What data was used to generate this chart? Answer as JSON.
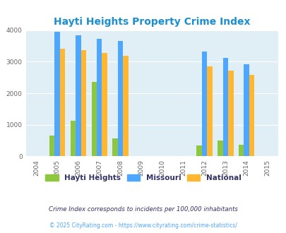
{
  "title": "Hayti Heights Property Crime Index",
  "years": [
    2004,
    2005,
    2006,
    2007,
    2008,
    2009,
    2010,
    2011,
    2012,
    2013,
    2014,
    2015
  ],
  "bar_years": [
    2005,
    2006,
    2007,
    2008,
    2012,
    2013,
    2014
  ],
  "hayti_heights": [
    650,
    1130,
    2350,
    560,
    330,
    500,
    370
  ],
  "missouri": [
    3950,
    3830,
    3730,
    3650,
    3330,
    3130,
    2920
  ],
  "national": [
    3420,
    3360,
    3290,
    3200,
    2860,
    2720,
    2590
  ],
  "colors": {
    "hayti_heights": "#8dc63f",
    "missouri": "#4da6ff",
    "national": "#ffb732"
  },
  "bg_color": "#e0eff5",
  "ylim": [
    0,
    4000
  ],
  "yticks": [
    0,
    1000,
    2000,
    3000,
    4000
  ],
  "title_color": "#1a8fd1",
  "legend_label_color": "#333366",
  "footnote1": "Crime Index corresponds to incidents per 100,000 inhabitants",
  "footnote2": "© 2025 CityRating.com - https://www.cityrating.com/crime-statistics/",
  "footnote2_color": "#4da6ff",
  "legend_labels": [
    "Hayti Heights",
    "Missouri",
    "National"
  ],
  "bar_width": 0.25
}
